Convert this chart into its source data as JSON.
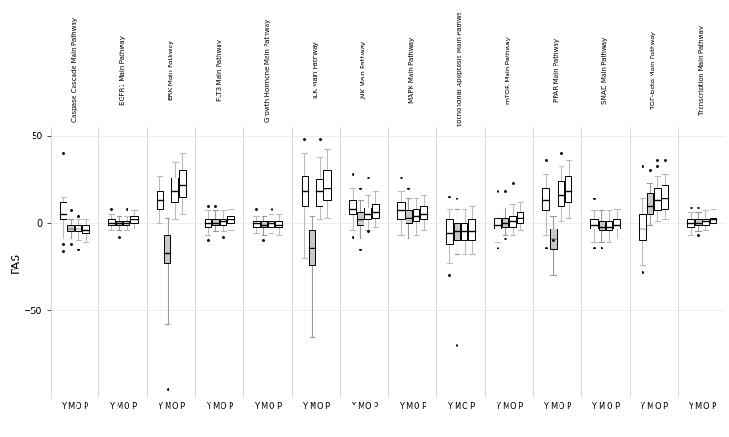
{
  "pathways": [
    "Caspase Cascade Main Pathway",
    "EGFR1 Main Pathway",
    "ERK Main Pathway",
    "FLT3 Main Pathway",
    "Growth Hormone Main Pathway",
    "ILK Main Pathway",
    "JNK Main Pathway",
    "MAPK Main Pathway",
    "Mitochondrial Apoptosis Main Pathway",
    "mTOR Main Pathway",
    "PPAR Main Pathway",
    "SMAD Main Pathway",
    "TGF–beta Main Pathway",
    "Transcription Main Pathway"
  ],
  "groups": [
    "Y",
    "M",
    "O",
    "P"
  ],
  "ylabel": "PAS",
  "panel_color": "#d0d0d0",
  "ylim": [
    -100,
    55
  ],
  "yticks": [
    -50,
    0,
    50
  ],
  "group_facecolors": [
    "white",
    "#c8c8c8",
    "white",
    "white"
  ],
  "group_whisker_colors": [
    "#bbbbbb",
    "#999999",
    "#bbbbbb",
    "#bbbbbb"
  ],
  "box_data": {
    "Caspase Cascade Main Pathway": {
      "Y": {
        "q1": 2,
        "median": 5,
        "q3": 12,
        "whislo": -9,
        "whishi": 15,
        "fliers": [
          40,
          -12,
          -16
        ]
      },
      "M": {
        "q1": -5,
        "median": -3,
        "q3": -1,
        "whislo": -9,
        "whishi": 2,
        "fliers": [
          7,
          -12
        ]
      },
      "O": {
        "q1": -5,
        "median": -3,
        "q3": -1,
        "whislo": -10,
        "whishi": 2,
        "fliers": [
          -15,
          4
        ]
      },
      "P": {
        "q1": -6,
        "median": -4,
        "q3": -1,
        "whislo": -11,
        "whishi": 2,
        "fliers": []
      }
    },
    "EGFR1 Main Pathway": {
      "Y": {
        "q1": -1,
        "median": 0,
        "q3": 2,
        "whislo": -4,
        "whishi": 5,
        "fliers": [
          8
        ]
      },
      "M": {
        "q1": -1,
        "median": 0,
        "q3": 1,
        "whislo": -4,
        "whishi": 4,
        "fliers": [
          -8
        ]
      },
      "O": {
        "q1": -1,
        "median": 0,
        "q3": 1,
        "whislo": -4,
        "whishi": 4,
        "fliers": [
          8
        ]
      },
      "P": {
        "q1": 0,
        "median": 2,
        "q3": 4,
        "whislo": -3,
        "whishi": 7,
        "fliers": []
      }
    },
    "ERK Main Pathway": {
      "Y": {
        "q1": 8,
        "median": 13,
        "q3": 18,
        "whislo": 0,
        "whishi": 27,
        "fliers": []
      },
      "M": {
        "q1": -23,
        "median": -17,
        "q3": -7,
        "whislo": -58,
        "whishi": 3,
        "fliers": [
          -95
        ]
      },
      "O": {
        "q1": 12,
        "median": 18,
        "q3": 26,
        "whislo": 2,
        "whishi": 35,
        "fliers": []
      },
      "P": {
        "q1": 15,
        "median": 22,
        "q3": 30,
        "whislo": 5,
        "whishi": 40,
        "fliers": []
      }
    },
    "FLT3 Main Pathway": {
      "Y": {
        "q1": -2,
        "median": 0,
        "q3": 2,
        "whislo": -7,
        "whishi": 7,
        "fliers": [
          10,
          -10
        ]
      },
      "M": {
        "q1": -1,
        "median": 0,
        "q3": 2,
        "whislo": -5,
        "whishi": 7,
        "fliers": [
          10
        ]
      },
      "O": {
        "q1": -1,
        "median": 1,
        "q3": 2,
        "whislo": -5,
        "whishi": 7,
        "fliers": [
          -8
        ]
      },
      "P": {
        "q1": 0,
        "median": 2,
        "q3": 4,
        "whislo": -4,
        "whishi": 8,
        "fliers": []
      }
    },
    "Growth Hormone Main Pathway": {
      "Y": {
        "q1": -2,
        "median": 0,
        "q3": 1,
        "whislo": -6,
        "whishi": 4,
        "fliers": [
          8
        ]
      },
      "M": {
        "q1": -2,
        "median": -1,
        "q3": 1,
        "whislo": -7,
        "whishi": 4,
        "fliers": [
          -10
        ]
      },
      "O": {
        "q1": -2,
        "median": 0,
        "q3": 1,
        "whislo": -6,
        "whishi": 5,
        "fliers": [
          8
        ]
      },
      "P": {
        "q1": -2,
        "median": -1,
        "q3": 1,
        "whislo": -7,
        "whishi": 5,
        "fliers": []
      }
    },
    "ILK Main Pathway": {
      "Y": {
        "q1": 10,
        "median": 18,
        "q3": 27,
        "whislo": -20,
        "whishi": 40,
        "fliers": [
          48
        ]
      },
      "M": {
        "q1": -24,
        "median": -14,
        "q3": -4,
        "whislo": -65,
        "whishi": 4,
        "fliers": []
      },
      "O": {
        "q1": 10,
        "median": 18,
        "q3": 25,
        "whislo": 2,
        "whishi": 38,
        "fliers": [
          48
        ]
      },
      "P": {
        "q1": 13,
        "median": 20,
        "q3": 30,
        "whislo": 3,
        "whishi": 42,
        "fliers": []
      }
    },
    "JNK Main Pathway": {
      "Y": {
        "q1": 5,
        "median": 8,
        "q3": 13,
        "whislo": -4,
        "whishi": 20,
        "fliers": [
          28,
          -8
        ]
      },
      "M": {
        "q1": -1,
        "median": 2,
        "q3": 6,
        "whislo": -9,
        "whishi": 13,
        "fliers": [
          20,
          -15
        ]
      },
      "O": {
        "q1": 2,
        "median": 5,
        "q3": 9,
        "whislo": -4,
        "whishi": 16,
        "fliers": [
          26,
          -5
        ]
      },
      "P": {
        "q1": 3,
        "median": 6,
        "q3": 11,
        "whislo": -2,
        "whishi": 18,
        "fliers": []
      }
    },
    "MAPK Main Pathway": {
      "Y": {
        "q1": 2,
        "median": 7,
        "q3": 12,
        "whislo": -7,
        "whishi": 18,
        "fliers": [
          26
        ]
      },
      "M": {
        "q1": 0,
        "median": 3,
        "q3": 7,
        "whislo": -9,
        "whishi": 14,
        "fliers": [
          20
        ]
      },
      "O": {
        "q1": 1,
        "median": 4,
        "q3": 8,
        "whislo": -7,
        "whishi": 14,
        "fliers": []
      },
      "P": {
        "q1": 2,
        "median": 5,
        "q3": 10,
        "whislo": -4,
        "whishi": 16,
        "fliers": []
      }
    },
    "Mitochondrial Apoptosis Main Pathway": {
      "Y": {
        "q1": -12,
        "median": -6,
        "q3": 2,
        "whislo": -23,
        "whishi": 8,
        "fliers": [
          15,
          -30
        ]
      },
      "M": {
        "q1": -10,
        "median": -5,
        "q3": 0,
        "whislo": -18,
        "whishi": 8,
        "fliers": [
          14,
          -70
        ]
      },
      "O": {
        "q1": -10,
        "median": -5,
        "q3": 0,
        "whislo": -18,
        "whishi": 8,
        "fliers": []
      },
      "P": {
        "q1": -10,
        "median": -5,
        "q3": 2,
        "whislo": -18,
        "whishi": 10,
        "fliers": []
      }
    },
    "mTOR Main Pathway": {
      "Y": {
        "q1": -3,
        "median": -1,
        "q3": 3,
        "whislo": -11,
        "whishi": 9,
        "fliers": [
          18,
          -14
        ]
      },
      "M": {
        "q1": -2,
        "median": 0,
        "q3": 3,
        "whislo": -7,
        "whishi": 9,
        "fliers": [
          18,
          -9
        ]
      },
      "O": {
        "q1": -2,
        "median": 1,
        "q3": 4,
        "whislo": -7,
        "whishi": 11,
        "fliers": [
          23
        ]
      },
      "P": {
        "q1": 0,
        "median": 3,
        "q3": 6,
        "whislo": -4,
        "whishi": 12,
        "fliers": []
      }
    },
    "PPAR Main Pathway": {
      "Y": {
        "q1": 7,
        "median": 13,
        "q3": 20,
        "whislo": -7,
        "whishi": 28,
        "fliers": [
          36,
          -14
        ]
      },
      "M": {
        "q1": -15,
        "median": -9,
        "q3": -3,
        "whislo": -30,
        "whishi": 4,
        "fliers": [
          -10
        ]
      },
      "O": {
        "q1": 10,
        "median": 16,
        "q3": 24,
        "whislo": 1,
        "whishi": 33,
        "fliers": [
          40
        ]
      },
      "P": {
        "q1": 12,
        "median": 18,
        "q3": 27,
        "whislo": 3,
        "whishi": 36,
        "fliers": []
      }
    },
    "SMAD Main Pathway": {
      "Y": {
        "q1": -3,
        "median": -1,
        "q3": 2,
        "whislo": -11,
        "whishi": 7,
        "fliers": [
          -14,
          14
        ]
      },
      "M": {
        "q1": -4,
        "median": -2,
        "q3": 1,
        "whislo": -11,
        "whishi": 7,
        "fliers": [
          -14
        ]
      },
      "O": {
        "q1": -4,
        "median": -2,
        "q3": 1,
        "whislo": -11,
        "whishi": 7,
        "fliers": []
      },
      "P": {
        "q1": -3,
        "median": -1,
        "q3": 2,
        "whislo": -9,
        "whishi": 8,
        "fliers": []
      }
    },
    "TGF–beta Main Pathway": {
      "Y": {
        "q1": -10,
        "median": -3,
        "q3": 5,
        "whislo": -24,
        "whishi": 14,
        "fliers": [
          33,
          -28
        ]
      },
      "M": {
        "q1": 5,
        "median": 10,
        "q3": 17,
        "whislo": -1,
        "whishi": 23,
        "fliers": [
          30
        ]
      },
      "O": {
        "q1": 7,
        "median": 13,
        "q3": 20,
        "whislo": 1,
        "whishi": 27,
        "fliers": [
          36,
          33
        ]
      },
      "P": {
        "q1": 8,
        "median": 14,
        "q3": 22,
        "whislo": 2,
        "whishi": 28,
        "fliers": [
          36
        ]
      }
    },
    "Transcription Main Pathway": {
      "Y": {
        "q1": -2,
        "median": 0,
        "q3": 2,
        "whislo": -7,
        "whishi": 6,
        "fliers": [
          9
        ]
      },
      "M": {
        "q1": -1,
        "median": 0,
        "q3": 2,
        "whislo": -5,
        "whishi": 6,
        "fliers": [
          -7,
          9
        ]
      },
      "O": {
        "q1": -1,
        "median": 1,
        "q3": 2,
        "whislo": -4,
        "whishi": 7,
        "fliers": []
      },
      "P": {
        "q1": 0,
        "median": 2,
        "q3": 3,
        "whislo": -3,
        "whishi": 8,
        "fliers": []
      }
    }
  }
}
